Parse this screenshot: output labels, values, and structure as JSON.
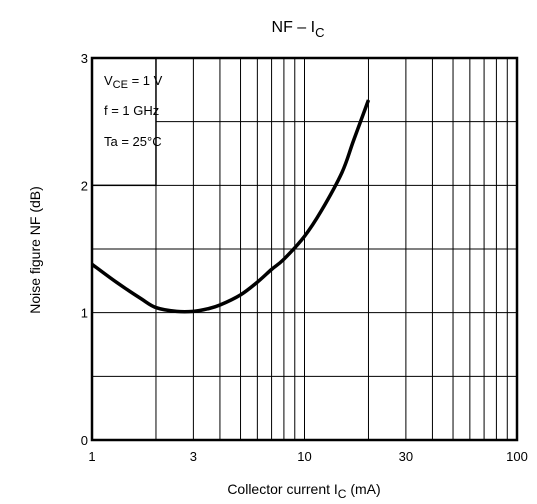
{
  "chart_data": {
    "type": "line",
    "title": {
      "main": "NF – I",
      "sub": "C"
    },
    "xlabel": {
      "main": "Collector current   I",
      "sub": "C",
      "tail": "   (mA)"
    },
    "ylabel": "Noise figure   NF   (dB)",
    "x_scale": "log",
    "xlim": [
      1,
      100
    ],
    "ylim": [
      0,
      3
    ],
    "x_ticks": [
      1,
      3,
      10,
      30,
      100
    ],
    "x_tick_labels": [
      "1",
      "3",
      "10",
      "30",
      "100"
    ],
    "y_ticks": [
      0,
      1,
      2,
      3
    ],
    "y_tick_labels": [
      "0",
      "1",
      "2",
      "3"
    ],
    "x_gridlines": [
      1,
      2,
      3,
      4,
      5,
      6,
      7,
      8,
      9,
      10,
      20,
      30,
      40,
      50,
      60,
      70,
      80,
      90,
      100
    ],
    "y_gridlines": [
      0,
      0.5,
      1,
      1.5,
      2,
      2.5,
      3
    ],
    "grid": true,
    "conditions": [
      "V",
      "f = 1 GHz",
      "Ta = 25°C"
    ],
    "condition_vce": {
      "main": "V",
      "sub": "CE",
      "tail": " = 1 V"
    },
    "series": [
      {
        "x": [
          1,
          1.3,
          1.7,
          2.0,
          2.5,
          3.0,
          3.5,
          4.0,
          5.0,
          6.0,
          7.0,
          8.0,
          10.0,
          12.0,
          15.0,
          17.0,
          20.0
        ],
        "y": [
          1.38,
          1.24,
          1.11,
          1.04,
          1.01,
          1.01,
          1.03,
          1.06,
          1.14,
          1.24,
          1.34,
          1.42,
          1.6,
          1.8,
          2.1,
          2.35,
          2.67
        ]
      }
    ]
  }
}
